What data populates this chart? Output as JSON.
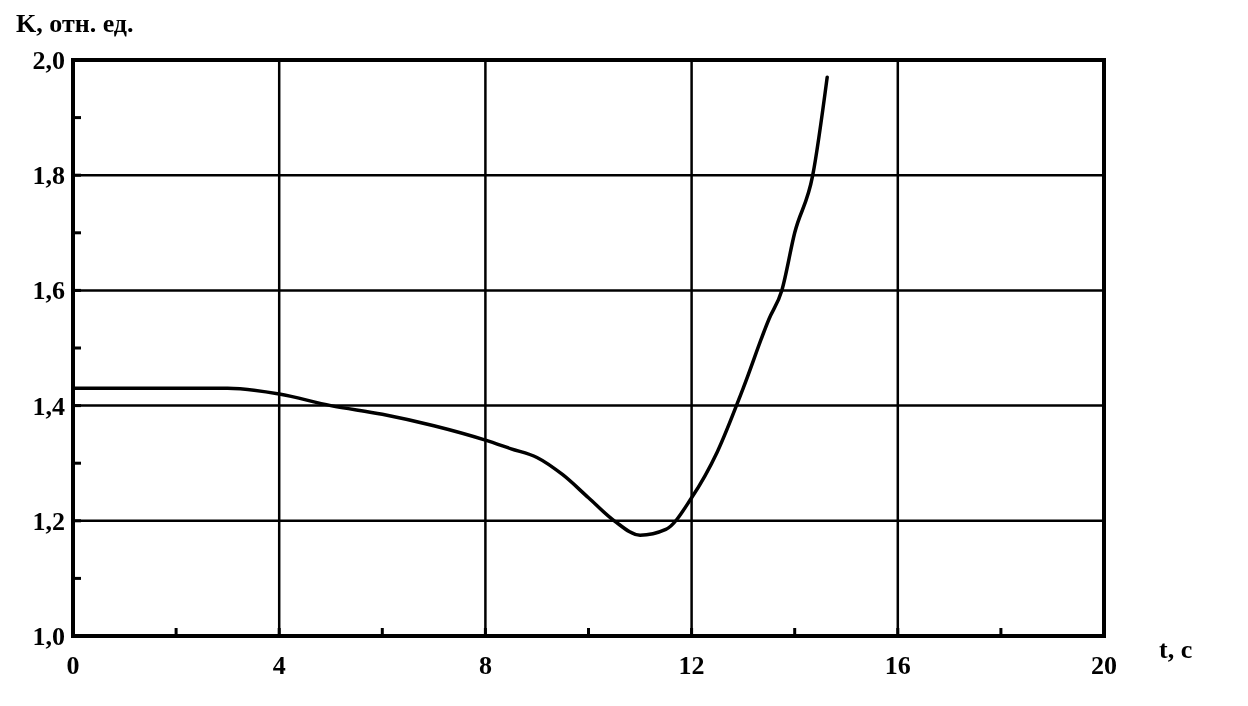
{
  "chart_data": {
    "type": "line",
    "xlabel": "t, с",
    "ylabel": "K, отн. ед.",
    "xlim": [
      0,
      20
    ],
    "ylim": [
      1.0,
      2.0
    ],
    "xticks": [
      0,
      {
        "value": 2,
        "label": null
      },
      4,
      {
        "value": 6,
        "label": null
      },
      8,
      {
        "value": 10,
        "label": null
      },
      12,
      {
        "value": 14,
        "label": null
      },
      16,
      {
        "value": 18,
        "label": null
      },
      20
    ],
    "yticks": [
      {
        "value": 1.0,
        "label": "1,0"
      },
      {
        "value": 1.1,
        "label": null
      },
      {
        "value": 1.2,
        "label": "1,2"
      },
      {
        "value": 1.3,
        "label": null
      },
      {
        "value": 1.4,
        "label": "1,4"
      },
      {
        "value": 1.5,
        "label": null
      },
      {
        "value": 1.6,
        "label": "1,6"
      },
      {
        "value": 1.7,
        "label": null
      },
      {
        "value": 1.8,
        "label": "1,8"
      },
      {
        "value": 1.9,
        "label": null
      },
      {
        "value": 2.0,
        "label": "2,0"
      }
    ],
    "grid": true,
    "marker": "none",
    "line_style": "solid",
    "series": [
      {
        "color": "#000000",
        "x": [
          0,
          1,
          2,
          3,
          4,
          5,
          6,
          7,
          8,
          8.5,
          9,
          9.5,
          10,
          10.5,
          11,
          11.5,
          12,
          12.5,
          13,
          13.5,
          13.75,
          14,
          14.35,
          14.63
        ],
        "values": [
          1.43,
          1.43,
          1.43,
          1.43,
          1.42,
          1.4,
          1.385,
          1.365,
          1.34,
          1.325,
          1.31,
          1.28,
          1.24,
          1.2,
          1.175,
          1.185,
          1.24,
          1.32,
          1.43,
          1.55,
          1.6,
          1.7,
          1.8,
          1.97
        ]
      }
    ]
  }
}
